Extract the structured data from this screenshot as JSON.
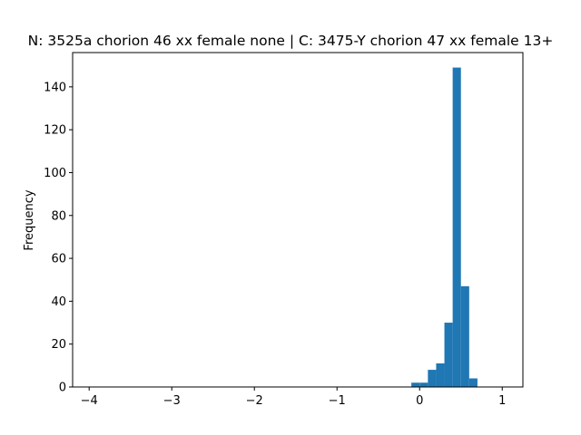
{
  "chart_data": {
    "type": "bar",
    "title": "N: 3525a chorion 46 xx female none | C: 3475-Y chorion 47 xx female 13+",
    "xlabel": "",
    "ylabel": "Frequency",
    "xlim": [
      -4.2,
      1.25
    ],
    "ylim": [
      0,
      156
    ],
    "grid": false,
    "color": "#1f77b4",
    "x_ticks": [
      -4,
      -3,
      -2,
      -1,
      0,
      1
    ],
    "x_tick_labels": [
      "−4",
      "−3",
      "−2",
      "−1",
      "0",
      "1"
    ],
    "y_ticks": [
      0,
      20,
      40,
      60,
      80,
      100,
      120,
      140
    ],
    "y_tick_labels": [
      "0",
      "20",
      "40",
      "60",
      "80",
      "100",
      "120",
      "140"
    ],
    "bins": [
      {
        "x0": -0.1,
        "x1": 0.0,
        "count": 2
      },
      {
        "x0": 0.0,
        "x1": 0.1,
        "count": 2
      },
      {
        "x0": 0.1,
        "x1": 0.2,
        "count": 8
      },
      {
        "x0": 0.2,
        "x1": 0.3,
        "count": 11
      },
      {
        "x0": 0.3,
        "x1": 0.4,
        "count": 30
      },
      {
        "x0": 0.4,
        "x1": 0.5,
        "count": 149
      },
      {
        "x0": 0.5,
        "x1": 0.6,
        "count": 47
      },
      {
        "x0": 0.6,
        "x1": 0.7,
        "count": 4
      }
    ]
  }
}
